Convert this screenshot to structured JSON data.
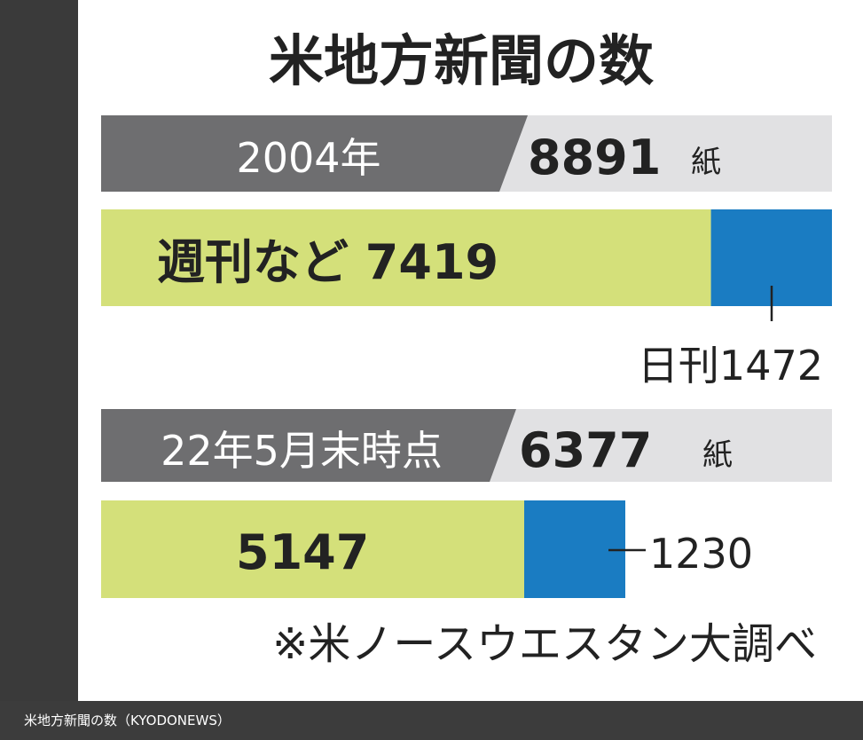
{
  "chart_data": {
    "type": "bar",
    "title": "米地方新聞の数",
    "unit": "紙",
    "categories": [
      "2004年",
      "22年5月末時点"
    ],
    "totals": [
      "8891",
      "6377"
    ],
    "series": [
      {
        "name": "週刊など",
        "values": [
          7419,
          5147
        ],
        "labels": [
          "週刊など 7419",
          "5147"
        ]
      },
      {
        "name": "日刊",
        "values": [
          1472,
          1230
        ],
        "labels": [
          "日刊1472",
          "1230"
        ]
      }
    ],
    "note": "※米ノースウエスタン大調べ"
  },
  "colors": {
    "weekly": "#d4e07a",
    "daily": "#1a7cc2",
    "header_dark": "#6e6e70",
    "header_light": "#e1e1e3"
  },
  "caption": "米地方新聞の数（KYODONEWS）"
}
